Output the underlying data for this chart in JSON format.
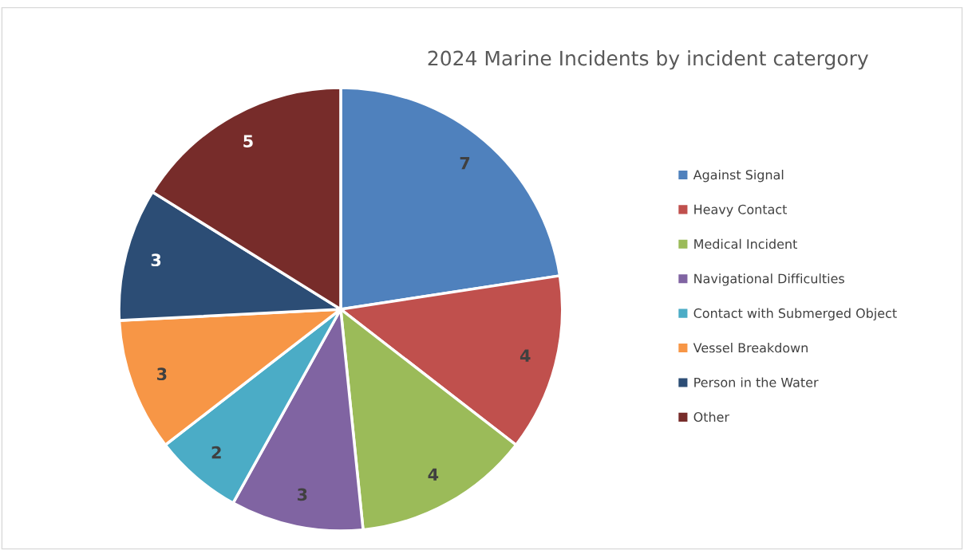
{
  "chart_data": {
    "type": "pie",
    "title": "2024 Marine Incidents by incident catergory",
    "categories": [
      "Against Signal",
      "Heavy Contact",
      "Medical Incident",
      "Navigational Difficulties",
      "Contact with Submerged Object",
      "Vessel Breakdown",
      "Person in the Water",
      "Other"
    ],
    "values": [
      7,
      4,
      4,
      3,
      2,
      3,
      3,
      5
    ],
    "colors": [
      "#4f81bd",
      "#c0504d",
      "#9bbb59",
      "#8064a2",
      "#4bacc6",
      "#f79646",
      "#2c4d75",
      "#772c2a"
    ],
    "data_labels": true,
    "legend": "right"
  }
}
